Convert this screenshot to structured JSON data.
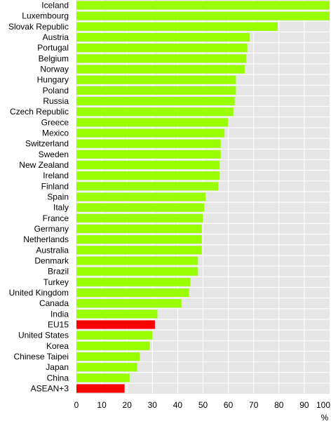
{
  "chart_data": {
    "type": "bar",
    "orientation": "horizontal",
    "title": "",
    "xlabel": "",
    "ylabel": "",
    "unit_label": "%",
    "xlim": [
      0,
      100
    ],
    "ticks": [
      "0",
      "10",
      "20",
      "30",
      "40",
      "50",
      "60",
      "70",
      "80",
      "90",
      "100"
    ],
    "grid": true,
    "colors": {
      "default_bar": "#99ff00",
      "highlight_bar": "#ff0000",
      "plot_background": "#e6e6e6",
      "gridline": "#ffffff",
      "row_separator": "#ffffff"
    },
    "categories": [
      "Iceland",
      "Luxembourg",
      "Slovak Republic",
      "Austria",
      "Portugal",
      "Belgium",
      "Norway",
      "Hungary",
      "Poland",
      "Russia",
      "Czech Republic",
      "Greece",
      "Mexico",
      "Switzerland",
      "Sweden",
      "New Zealand",
      "Ireland",
      "Finland",
      "Spain",
      "Italy",
      "France",
      "Germany",
      "Netherlands",
      "Australia",
      "Denmark",
      "Brazil",
      "Turkey",
      "United Kingdom",
      "Canada",
      "India",
      "EU15",
      "United States",
      "Korea",
      "Chinese Taipei",
      "Japan",
      "China",
      "ASEAN+3"
    ],
    "values": [
      100,
      100,
      79.5,
      68.5,
      67.5,
      67,
      66.5,
      63,
      63,
      62.5,
      62,
      60,
      58.5,
      57,
      57,
      56.5,
      56.5,
      56,
      51,
      50.5,
      50,
      49.5,
      49.5,
      49.5,
      48,
      48,
      45,
      44.5,
      41.5,
      32,
      31,
      30,
      29,
      25,
      24,
      21,
      19
    ],
    "highlighted": [
      "EU15",
      "ASEAN+3"
    ]
  }
}
